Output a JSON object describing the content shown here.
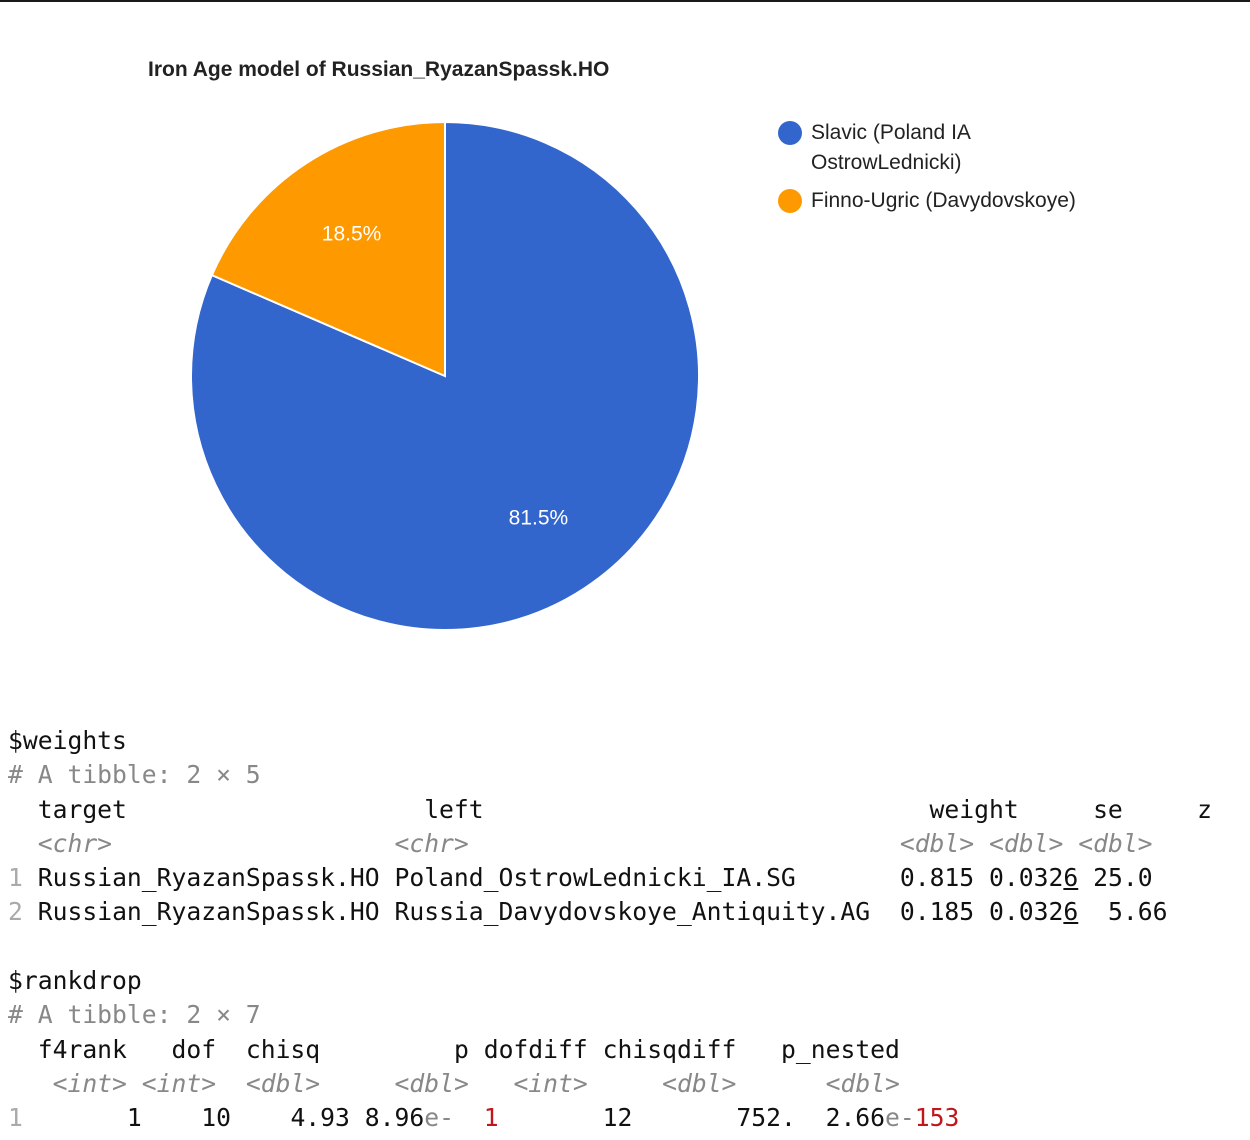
{
  "chart_data": {
    "type": "pie",
    "title": "Iron Age model of Russian_RyazanSpassk.HO",
    "slices": [
      {
        "label": "Slavic (Poland IA OstrowLednicki)",
        "value": 81.5,
        "data_label": "81.5%",
        "color": "#3366cc"
      },
      {
        "label": "Finno-Ugric (Davydovskoye)",
        "value": 18.5,
        "data_label": "18.5%",
        "color": "#ff9900"
      }
    ],
    "legend_position": "right"
  },
  "legend": {
    "slavic_line1": "Slavic (Poland IA",
    "slavic_line2": "OstrowLednicki)",
    "finno": "Finno-Ugric (Davydovskoye)"
  },
  "console": {
    "weights": {
      "name": "$weights",
      "tibble": "# A tibble: 2 × 5",
      "columns": [
        "target",
        "left",
        "weight",
        "se",
        "z"
      ],
      "types": [
        "<chr>",
        "<chr>",
        "<dbl>",
        "<dbl>",
        "<dbl>"
      ],
      "rows": [
        {
          "id": "1",
          "target": "Russian_RyazanSpassk.HO",
          "left": "Poland_OstrowLednicki_IA.SG",
          "weight": "0.815",
          "se_a": "0.032",
          "se_b": "6",
          "z": "25.0"
        },
        {
          "id": "2",
          "target": "Russian_RyazanSpassk.HO",
          "left": "Russia_Davydovskoye_Antiquity.AG",
          "weight": "0.185",
          "se_a": "0.032",
          "se_b": "6",
          "z": "5.66"
        }
      ]
    },
    "rankdrop": {
      "name": "$rankdrop",
      "tibble": "# A tibble: 2 × 7",
      "columns": [
        "f4rank",
        "dof",
        "chisq",
        "p",
        "dofdiff",
        "chisqdiff",
        "p_nested"
      ],
      "types": [
        "<int>",
        "<int>",
        "<dbl>",
        "<dbl>",
        "<int>",
        "<dbl>",
        "<dbl>"
      ],
      "rows": [
        {
          "id": "1",
          "f4rank": "1",
          "dof": "10",
          "chisq": "4.93",
          "p_mant": "8.96",
          "p_e": "e-",
          "p_exp": "1",
          "dofdiff": "12",
          "chisqdiff": "752.",
          "pn_mant": "2.66",
          "pn_e": "e-",
          "pn_exp": "153"
        }
      ]
    }
  }
}
